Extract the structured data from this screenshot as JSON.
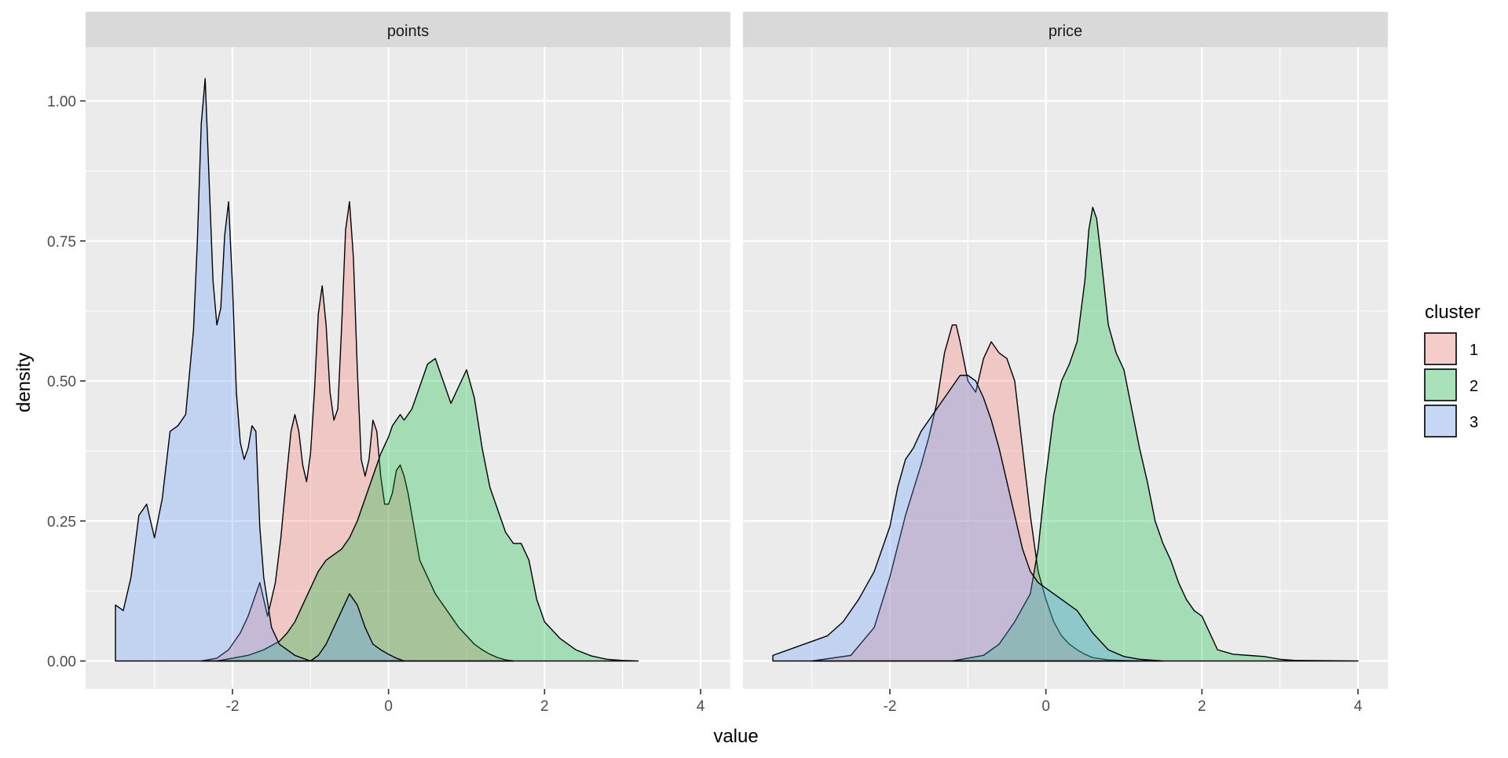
{
  "chart_data": {
    "type": "area",
    "xlabel": "value",
    "ylabel": "density",
    "legend": {
      "title": "cluster",
      "position": "right"
    },
    "facets": [
      "points",
      "price"
    ],
    "xlim": [
      -3.5,
      4
    ],
    "ylim": [
      0,
      1.1
    ],
    "x_ticks": [
      -2,
      0,
      2,
      4
    ],
    "x_tick_labels": [
      "-2",
      "0",
      "2",
      "4"
    ],
    "y_ticks": [
      0,
      0.25,
      0.5,
      0.75,
      1.0
    ],
    "y_tick_labels": [
      "0.00",
      "0.25",
      "0.50",
      "0.75",
      "1.00"
    ],
    "grid": true,
    "series": [
      {
        "name": "1",
        "color": "#F8766D"
      },
      {
        "name": "2",
        "color": "#00BA38"
      },
      {
        "name": "3",
        "color": "#619CFF"
      }
    ],
    "panels": [
      {
        "facet": "points",
        "series": [
          {
            "name": "1",
            "x": [
              -2.4,
              -2.2,
              -2.05,
              -1.9,
              -1.8,
              -1.65,
              -1.55,
              -1.45,
              -1.38,
              -1.3,
              -1.25,
              -1.2,
              -1.15,
              -1.1,
              -1.05,
              -1.0,
              -0.95,
              -0.9,
              -0.85,
              -0.8,
              -0.75,
              -0.7,
              -0.65,
              -0.6,
              -0.55,
              -0.5,
              -0.45,
              -0.4,
              -0.35,
              -0.3,
              -0.25,
              -0.2,
              -0.15,
              -0.1,
              -0.05,
              0.0,
              0.05,
              0.1,
              0.15,
              0.2,
              0.25,
              0.3,
              0.35,
              0.4,
              0.5,
              0.6,
              0.7,
              0.8,
              0.9,
              1.0,
              1.1,
              1.2,
              1.3,
              1.4,
              1.5,
              1.6
            ],
            "y": [
              0.0,
              0.005,
              0.02,
              0.05,
              0.08,
              0.14,
              0.08,
              0.14,
              0.22,
              0.34,
              0.41,
              0.44,
              0.41,
              0.35,
              0.32,
              0.37,
              0.48,
              0.62,
              0.67,
              0.6,
              0.48,
              0.43,
              0.45,
              0.6,
              0.77,
              0.82,
              0.72,
              0.52,
              0.36,
              0.33,
              0.36,
              0.43,
              0.41,
              0.33,
              0.28,
              0.28,
              0.3,
              0.34,
              0.35,
              0.33,
              0.3,
              0.26,
              0.22,
              0.18,
              0.15,
              0.12,
              0.1,
              0.08,
              0.06,
              0.045,
              0.03,
              0.02,
              0.012,
              0.006,
              0.002,
              0.0
            ]
          },
          {
            "name": "2",
            "x": [
              -2.2,
              -2.0,
              -1.8,
              -1.6,
              -1.4,
              -1.3,
              -1.2,
              -1.1,
              -1.0,
              -0.9,
              -0.8,
              -0.7,
              -0.6,
              -0.5,
              -0.4,
              -0.3,
              -0.2,
              -0.1,
              0.0,
              0.05,
              0.1,
              0.15,
              0.2,
              0.3,
              0.4,
              0.5,
              0.6,
              0.7,
              0.8,
              0.9,
              1.0,
              1.1,
              1.2,
              1.3,
              1.4,
              1.5,
              1.6,
              1.7,
              1.8,
              1.9,
              2.0,
              2.2,
              2.4,
              2.6,
              2.8,
              3.0,
              3.2
            ],
            "y": [
              0.0,
              0.005,
              0.01,
              0.02,
              0.035,
              0.05,
              0.07,
              0.1,
              0.13,
              0.16,
              0.18,
              0.19,
              0.2,
              0.22,
              0.25,
              0.29,
              0.33,
              0.37,
              0.4,
              0.42,
              0.43,
              0.44,
              0.43,
              0.45,
              0.49,
              0.53,
              0.54,
              0.5,
              0.46,
              0.49,
              0.52,
              0.47,
              0.38,
              0.31,
              0.27,
              0.23,
              0.21,
              0.21,
              0.18,
              0.11,
              0.07,
              0.04,
              0.02,
              0.009,
              0.003,
              0.001,
              0.0
            ]
          },
          {
            "name": "3",
            "x": [
              -3.5,
              -3.4,
              -3.3,
              -3.2,
              -3.1,
              -3.0,
              -2.9,
              -2.8,
              -2.7,
              -2.6,
              -2.5,
              -2.45,
              -2.4,
              -2.35,
              -2.3,
              -2.25,
              -2.2,
              -2.15,
              -2.1,
              -2.05,
              -2.0,
              -1.95,
              -1.9,
              -1.85,
              -1.8,
              -1.75,
              -1.7,
              -1.65,
              -1.6,
              -1.5,
              -1.4,
              -1.3,
              -1.2,
              -1.1,
              -1.0,
              -0.9,
              -0.8,
              -0.7,
              -0.6,
              -0.5,
              -0.4,
              -0.3,
              -0.2,
              -0.1,
              0.0,
              0.1,
              0.2
            ],
            "y": [
              0.1,
              0.09,
              0.15,
              0.26,
              0.28,
              0.22,
              0.29,
              0.41,
              0.42,
              0.44,
              0.59,
              0.75,
              0.96,
              1.04,
              0.86,
              0.68,
              0.6,
              0.63,
              0.76,
              0.82,
              0.67,
              0.48,
              0.39,
              0.36,
              0.38,
              0.42,
              0.41,
              0.24,
              0.15,
              0.06,
              0.03,
              0.02,
              0.01,
              0.005,
              0.0,
              0.01,
              0.03,
              0.06,
              0.09,
              0.12,
              0.1,
              0.06,
              0.03,
              0.02,
              0.012,
              0.005,
              0.0
            ]
          }
        ]
      },
      {
        "facet": "price",
        "series": [
          {
            "name": "1",
            "x": [
              -3.0,
              -2.5,
              -2.2,
              -2.0,
              -1.8,
              -1.6,
              -1.5,
              -1.4,
              -1.3,
              -1.2,
              -1.15,
              -1.1,
              -1.0,
              -0.9,
              -0.8,
              -0.7,
              -0.6,
              -0.5,
              -0.4,
              -0.3,
              -0.2,
              -0.1,
              0.0,
              0.1,
              0.2,
              0.3,
              0.4,
              0.5,
              0.6,
              0.8,
              1.0,
              1.2
            ],
            "y": [
              0.0,
              0.01,
              0.06,
              0.15,
              0.26,
              0.35,
              0.4,
              0.46,
              0.55,
              0.6,
              0.6,
              0.57,
              0.5,
              0.48,
              0.54,
              0.57,
              0.55,
              0.54,
              0.5,
              0.38,
              0.26,
              0.16,
              0.11,
              0.07,
              0.045,
              0.03,
              0.02,
              0.012,
              0.006,
              0.002,
              0.001,
              0.0
            ]
          },
          {
            "name": "2",
            "x": [
              -1.2,
              -0.8,
              -0.6,
              -0.4,
              -0.2,
              -0.1,
              0.0,
              0.1,
              0.2,
              0.3,
              0.4,
              0.5,
              0.55,
              0.6,
              0.65,
              0.7,
              0.8,
              0.9,
              1.0,
              1.1,
              1.2,
              1.3,
              1.4,
              1.5,
              1.6,
              1.7,
              1.8,
              1.9,
              2.0,
              2.1,
              2.2,
              2.4,
              2.6,
              2.8,
              3.0,
              3.2,
              4.0
            ],
            "y": [
              0.0,
              0.01,
              0.03,
              0.07,
              0.12,
              0.2,
              0.33,
              0.44,
              0.5,
              0.53,
              0.57,
              0.68,
              0.77,
              0.81,
              0.79,
              0.73,
              0.6,
              0.55,
              0.52,
              0.45,
              0.38,
              0.32,
              0.25,
              0.21,
              0.18,
              0.14,
              0.11,
              0.09,
              0.08,
              0.05,
              0.02,
              0.012,
              0.01,
              0.008,
              0.003,
              0.001,
              0.0
            ]
          },
          {
            "name": "3",
            "x": [
              -3.5,
              -3.2,
              -3.0,
              -2.8,
              -2.6,
              -2.4,
              -2.2,
              -2.0,
              -1.9,
              -1.8,
              -1.7,
              -1.6,
              -1.5,
              -1.4,
              -1.3,
              -1.2,
              -1.1,
              -1.0,
              -0.9,
              -0.8,
              -0.7,
              -0.6,
              -0.5,
              -0.4,
              -0.3,
              -0.2,
              -0.1,
              0.0,
              0.1,
              0.2,
              0.3,
              0.4,
              0.5,
              0.6,
              0.7,
              0.8,
              1.0,
              1.2,
              1.5
            ],
            "y": [
              0.01,
              0.025,
              0.035,
              0.045,
              0.07,
              0.11,
              0.16,
              0.24,
              0.31,
              0.36,
              0.38,
              0.41,
              0.43,
              0.45,
              0.47,
              0.49,
              0.51,
              0.51,
              0.5,
              0.47,
              0.43,
              0.38,
              0.32,
              0.26,
              0.2,
              0.16,
              0.14,
              0.13,
              0.12,
              0.11,
              0.1,
              0.09,
              0.07,
              0.05,
              0.035,
              0.02,
              0.008,
              0.003,
              0.0
            ]
          }
        ]
      }
    ]
  }
}
